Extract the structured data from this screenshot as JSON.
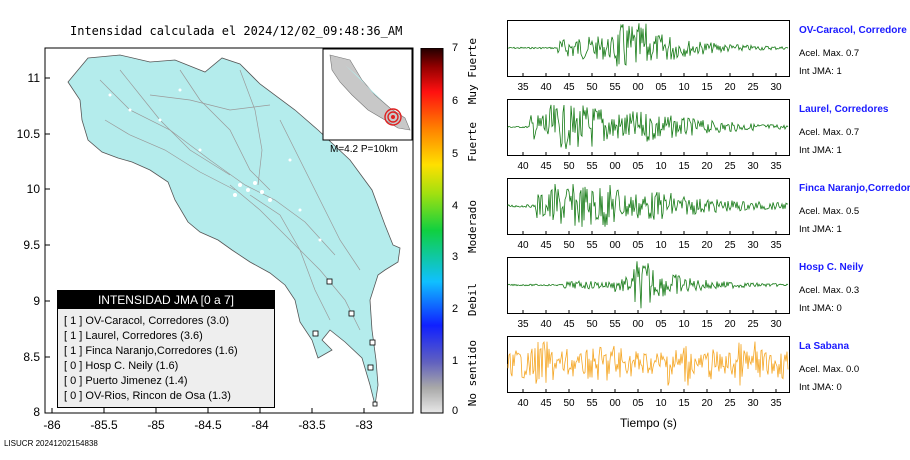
{
  "map": {
    "title": "Intensidad calculada el 2024/12/02_09:48:36_AM",
    "footer_id": "LISUCR 20241202154838",
    "lat_ticks": [
      "11",
      "10.5",
      "10",
      "9.5",
      "9",
      "8.5",
      "8"
    ],
    "lon_ticks": [
      "-86",
      "-85.5",
      "-85",
      "-84.5",
      "-84",
      "-83.5",
      "-83"
    ],
    "inset_label": "M=4.2 P=10km",
    "land_color": "#b4ecec",
    "epicenter_color": "#e02020"
  },
  "legend": {
    "title": "INTENSIDAD JMA [0 a 7]",
    "rows": [
      "[ 1 ]  OV-Caracol, Corredores (3.0)",
      "[ 1 ]  Laurel, Corredores (3.6)",
      "[ 1 ]  Finca Naranjo,Corredores (1.6)",
      "[ 0 ]  Hosp C. Neily (1.6)",
      "[ 0 ]  Puerto Jimenez (1.4)",
      "[ 0 ]  OV-Rios, Rincon de Osa (1.3)"
    ]
  },
  "colorbar": {
    "ticks": [
      "7",
      "6",
      "5",
      "4",
      "3",
      "2",
      "1",
      "0"
    ],
    "words": [
      "Muy Fuerte",
      "Fuerte",
      "Moderado",
      "Debil",
      "No sentido"
    ]
  },
  "traces": [
    {
      "name": "OV-Caracol, Corredore",
      "acc": "Acel. Max. 0.7",
      "jma": "Int JMA: 1",
      "color": "#157a15",
      "ticks": [
        "35",
        "40",
        "45",
        "50",
        "55",
        "00",
        "05",
        "10",
        "15",
        "20",
        "25",
        "30"
      ]
    },
    {
      "name": "Laurel, Corredores",
      "acc": "Acel. Max. 0.7",
      "jma": "Int JMA: 1",
      "color": "#157a15",
      "ticks": [
        "40",
        "45",
        "50",
        "55",
        "00",
        "05",
        "10",
        "15",
        "20",
        "25",
        "30",
        "35"
      ]
    },
    {
      "name": "Finca Naranjo,Corredore",
      "acc": "Acel. Max. 0.5",
      "jma": "Int JMA: 1",
      "color": "#157a15",
      "ticks": [
        "40",
        "45",
        "50",
        "55",
        "00",
        "05",
        "10",
        "15",
        "20",
        "25",
        "30",
        "35"
      ]
    },
    {
      "name": "Hosp C. Neily",
      "acc": "Acel. Max. 0.3",
      "jma": "Int JMA: 0",
      "color": "#157a15",
      "ticks": [
        "35",
        "40",
        "45",
        "50",
        "55",
        "00",
        "05",
        "10",
        "15",
        "20",
        "25",
        "30"
      ]
    },
    {
      "name": "La Sabana",
      "acc": "Acel. Max. 0.0",
      "jma": "Int JMA: 0",
      "color": "#f5a623",
      "ticks": [
        "40",
        "45",
        "50",
        "55",
        "00",
        "05",
        "10",
        "15",
        "20",
        "25",
        "30",
        "35"
      ]
    }
  ],
  "time_label": "Tiempo (s)"
}
